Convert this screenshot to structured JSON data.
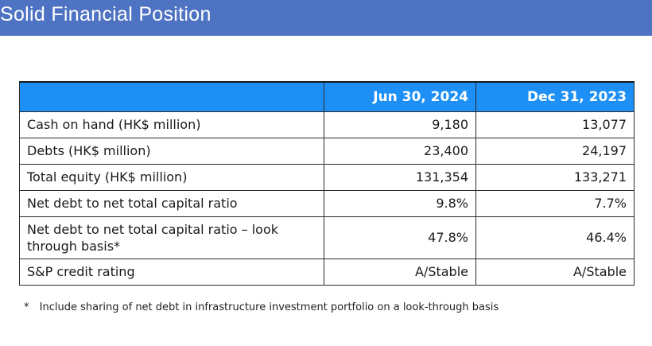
{
  "header": {
    "title": "Solid Financial Position",
    "color": "#4f73c3"
  },
  "table": {
    "header_color": "#1e90f5",
    "columns": [
      "",
      "Jun 30, 2024",
      "Dec 31, 2023"
    ],
    "rows": [
      {
        "label": "Cash on hand (HK$ million)",
        "jun_2024": "9,180",
        "dec_2023": "13,077"
      },
      {
        "label": "Debts (HK$ million)",
        "jun_2024": "23,400",
        "dec_2023": "24,197"
      },
      {
        "label": "Total equity (HK$ million)",
        "jun_2024": "131,354",
        "dec_2023": "133,271"
      },
      {
        "label": "Net debt to net total capital ratio",
        "jun_2024": "9.8%",
        "dec_2023": "7.7%"
      },
      {
        "label": "Net debt to net total capital ratio – look through basis*",
        "jun_2024": "47.8%",
        "dec_2023": "46.4%"
      },
      {
        "label": "S&P credit rating",
        "jun_2024": "A/Stable",
        "dec_2023": "A/Stable"
      }
    ]
  },
  "footnote": {
    "mark": "*",
    "text": "Include sharing of net debt in infrastructure investment portfolio on a look-through basis"
  }
}
